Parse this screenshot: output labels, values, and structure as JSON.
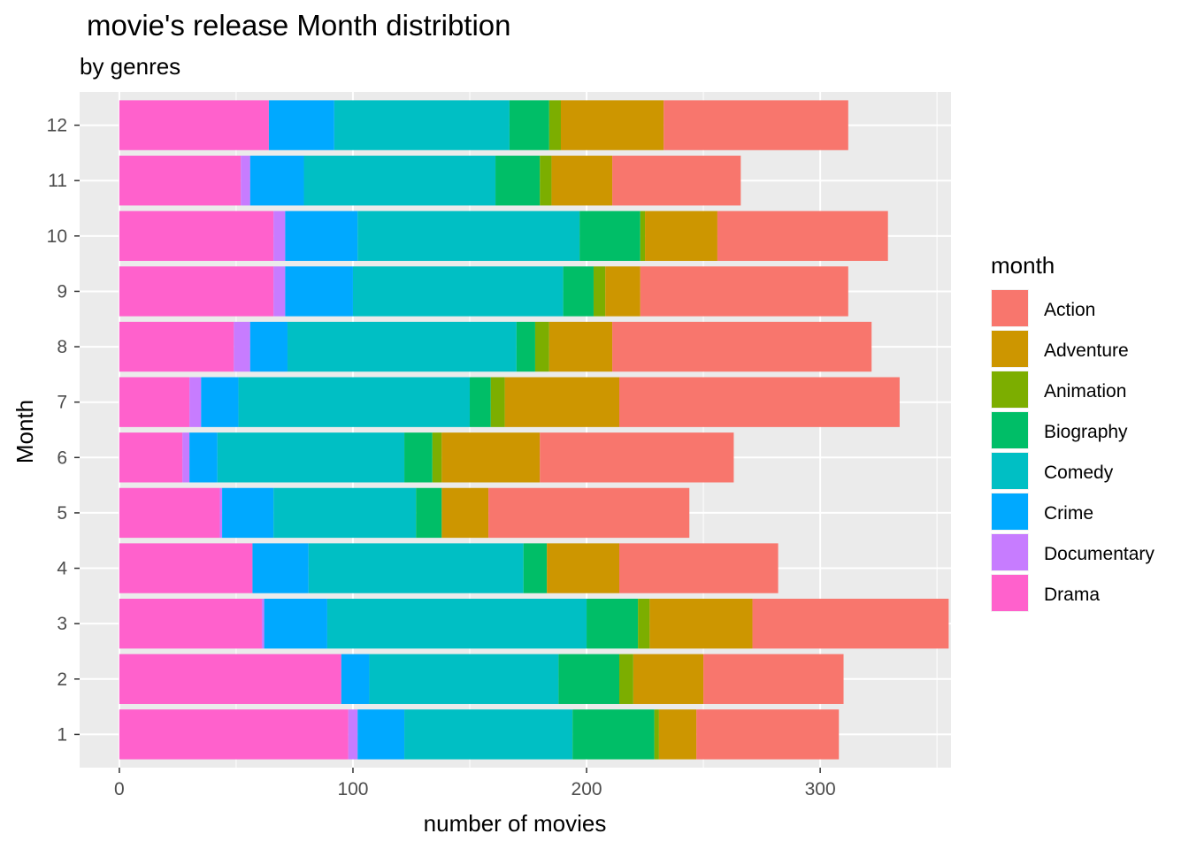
{
  "chart_data": {
    "type": "bar",
    "orientation": "horizontal",
    "stacked": true,
    "title": "movie's release Month distribtion",
    "subtitle": "by genres",
    "xlabel": "number of movies",
    "ylabel": "Month",
    "xlim": [
      -17,
      356
    ],
    "x_ticks": [
      0,
      100,
      200,
      300
    ],
    "x_minor_ticks": [
      50,
      150,
      250,
      350
    ],
    "categories": [
      "1",
      "2",
      "3",
      "4",
      "5",
      "6",
      "7",
      "8",
      "9",
      "10",
      "11",
      "12"
    ],
    "grid": true,
    "legend": {
      "title": "month",
      "position": "right"
    },
    "series": [
      {
        "name": "Drama",
        "color": "#FF61CC",
        "values": [
          98,
          95,
          61,
          57,
          43,
          27,
          30,
          49,
          66,
          66,
          52,
          64
        ]
      },
      {
        "name": "Documentary",
        "color": "#C77CFF",
        "values": [
          4,
          0,
          1,
          0,
          1,
          3,
          5,
          7,
          5,
          5,
          4,
          0
        ]
      },
      {
        "name": "Crime",
        "color": "#00A9FF",
        "values": [
          20,
          12,
          27,
          24,
          22,
          12,
          16,
          16,
          29,
          31,
          23,
          28
        ]
      },
      {
        "name": "Comedy",
        "color": "#00BFC4",
        "values": [
          72,
          81,
          111,
          92,
          61,
          80,
          99,
          98,
          90,
          95,
          82,
          75
        ]
      },
      {
        "name": "Biography",
        "color": "#00BE67",
        "values": [
          35,
          26,
          22,
          10,
          11,
          12,
          9,
          8,
          13,
          26,
          19,
          17
        ]
      },
      {
        "name": "Animation",
        "color": "#7CAE00",
        "values": [
          2,
          6,
          5,
          0,
          0,
          4,
          6,
          6,
          5,
          2,
          5,
          5
        ]
      },
      {
        "name": "Adventure",
        "color": "#CD9600",
        "values": [
          16,
          30,
          44,
          31,
          20,
          42,
          49,
          27,
          15,
          31,
          26,
          44
        ]
      },
      {
        "name": "Action",
        "color": "#F8766D",
        "values": [
          61,
          60,
          84,
          68,
          86,
          83,
          120,
          111,
          89,
          73,
          55,
          79
        ]
      }
    ]
  }
}
